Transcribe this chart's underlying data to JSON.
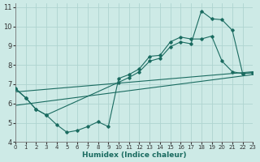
{
  "xlabel": "Humidex (Indice chaleur)",
  "xlim": [
    0,
    23
  ],
  "ylim": [
    4,
    11.2
  ],
  "yticks": [
    4,
    5,
    6,
    7,
    8,
    9,
    10,
    11
  ],
  "xticks": [
    0,
    1,
    2,
    3,
    4,
    5,
    6,
    7,
    8,
    9,
    10,
    11,
    12,
    13,
    14,
    15,
    16,
    17,
    18,
    19,
    20,
    21,
    22,
    23
  ],
  "bg_color": "#cdeae6",
  "grid_color": "#afd4d0",
  "line_color": "#1a6b60",
  "curve1_x": [
    0,
    1,
    2,
    3,
    4,
    5,
    6,
    7,
    8,
    9,
    10,
    11,
    12,
    13,
    14,
    15,
    16,
    17,
    18,
    19,
    20,
    21,
    22,
    23
  ],
  "curve1_y": [
    6.8,
    6.3,
    5.7,
    5.4,
    4.9,
    4.5,
    4.6,
    4.8,
    5.05,
    4.8,
    7.3,
    7.5,
    7.8,
    8.45,
    8.5,
    9.2,
    9.45,
    9.35,
    9.35,
    9.5,
    8.2,
    7.65,
    7.55,
    7.6
  ],
  "curve2_x": [
    0,
    1,
    2,
    3,
    10,
    11,
    12,
    13,
    14,
    15,
    16,
    17,
    18,
    19,
    20,
    21,
    22,
    23
  ],
  "curve2_y": [
    6.75,
    6.3,
    5.7,
    5.4,
    7.1,
    7.35,
    7.65,
    8.2,
    8.35,
    8.95,
    9.2,
    9.1,
    10.8,
    10.4,
    10.35,
    9.8,
    7.55,
    7.6
  ],
  "trend1_x": [
    0,
    23
  ],
  "trend1_y": [
    6.6,
    7.65
  ],
  "trend2_x": [
    0,
    23
  ],
  "trend2_y": [
    5.9,
    7.5
  ]
}
